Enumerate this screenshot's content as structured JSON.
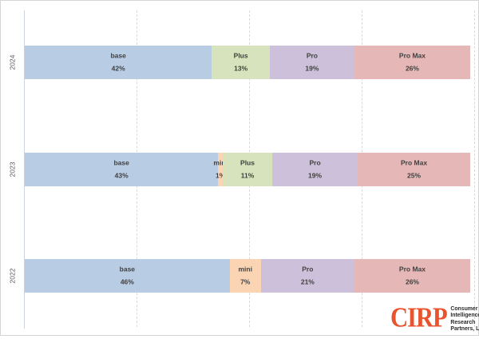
{
  "chart_data": {
    "type": "bar",
    "variant": "horizontal-stacked-100pct",
    "categories": [
      "2024",
      "2023",
      "2022"
    ],
    "series": [
      {
        "name": "base",
        "color": "#b8cce4",
        "values": [
          42,
          43,
          46
        ]
      },
      {
        "name": "mini",
        "color": "#fbd4b4",
        "values": [
          0,
          1,
          7
        ]
      },
      {
        "name": "Plus",
        "color": "#d6e3bc",
        "values": [
          13,
          11,
          0
        ]
      },
      {
        "name": "Pro",
        "color": "#ccc0da",
        "values": [
          19,
          19,
          21
        ]
      },
      {
        "name": "Pro Max",
        "color": "#e5b8b7",
        "values": [
          26,
          25,
          26
        ]
      }
    ],
    "xlim": [
      0,
      100
    ],
    "gridlines_pct": [
      25,
      50,
      75,
      100
    ],
    "grid_on": true,
    "grid_color": "#d9d9d9",
    "axis_color": "#ccd3dd",
    "data_label_color": "#404040",
    "tick_label_color": "#595959",
    "legend_position": "none",
    "data_label_format": "name above percent, inside segment",
    "percent_suffix": "%"
  },
  "logo": {
    "wordmark": "CIRP",
    "wordmark_color": "#e9532d",
    "lines": [
      "Consumer",
      "Intelligence",
      "Research",
      "Partners, LLC"
    ],
    "text_color": "#2b2b2b"
  }
}
